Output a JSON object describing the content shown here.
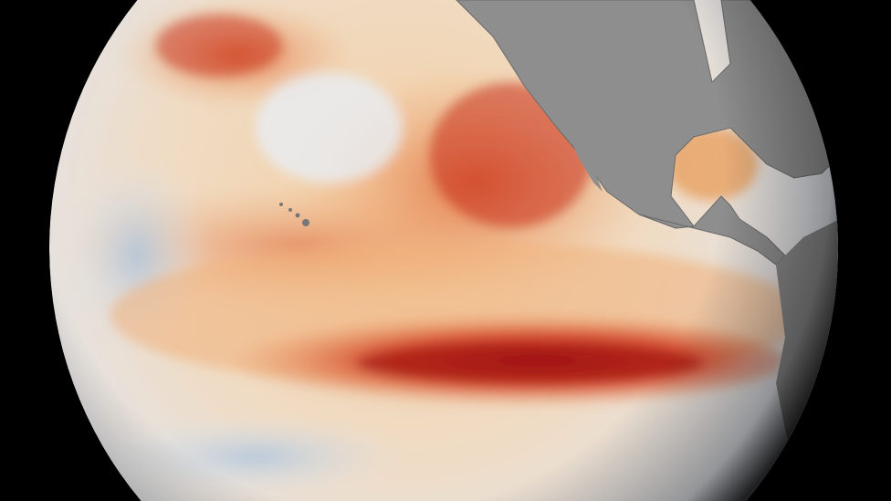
{
  "image": {
    "subject": "globe-sea-surface-temperature",
    "colors": {
      "background": "#000000",
      "ocean_neutral": "#ece6dc",
      "warm_light": "#f2c08a",
      "warm_mid": "#e8844a",
      "warm_strong": "#c8321e",
      "warm_extreme": "#9e1412",
      "cool": "#a9c3de",
      "land": "#8e8e8e"
    },
    "regions": [
      "equatorial-warm-band",
      "north-pacific-warm-patch",
      "north-america-landmass",
      "central-america-landmass",
      "south-america-landmass",
      "hawaii-islands"
    ]
  }
}
